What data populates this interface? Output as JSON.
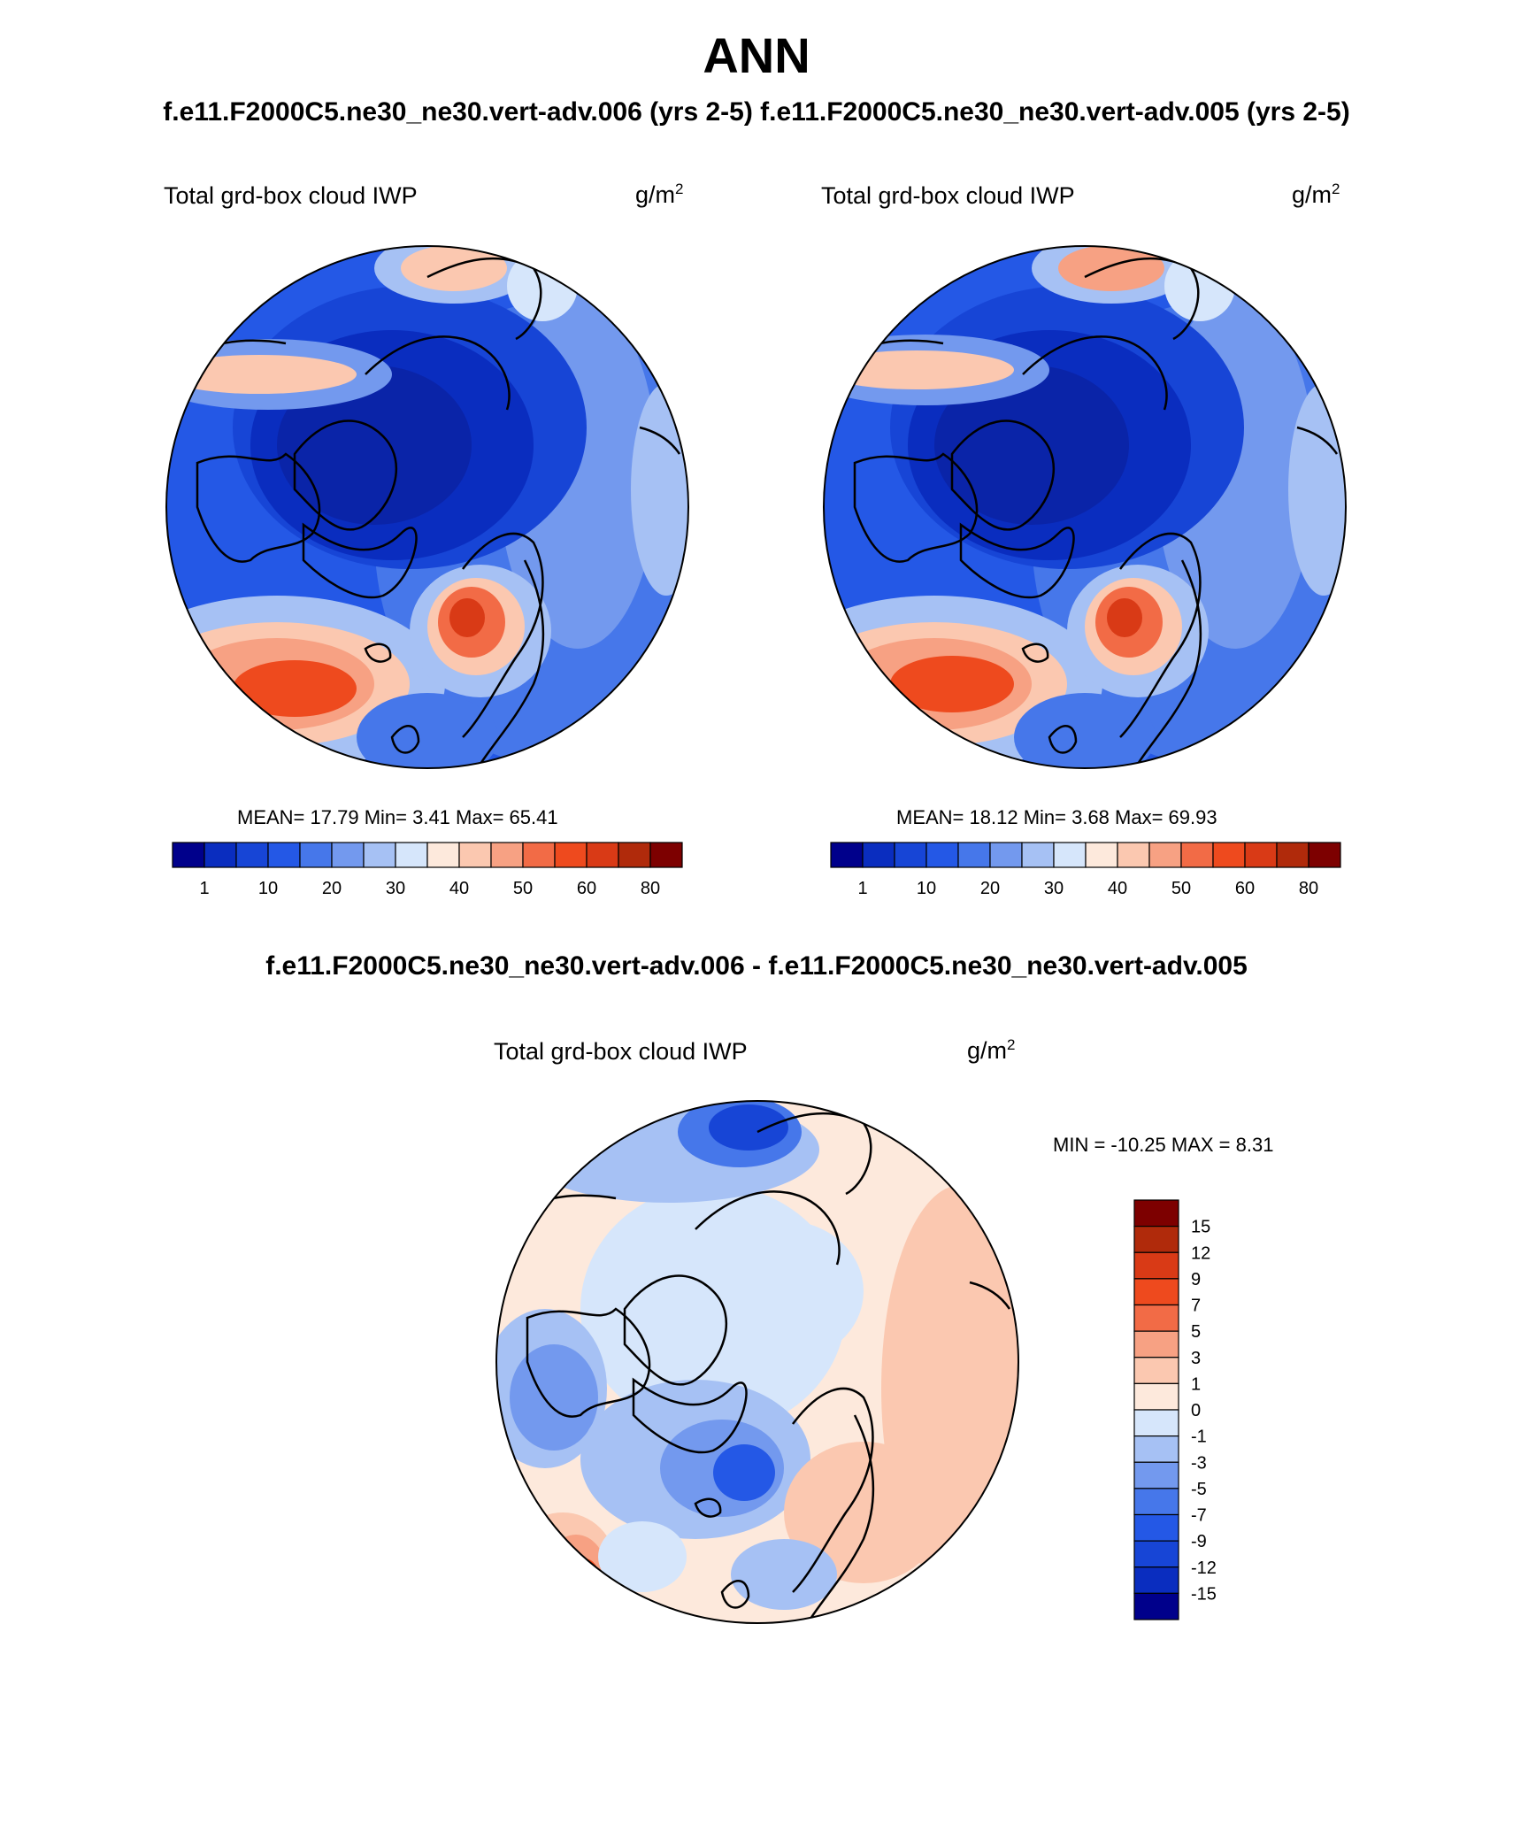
{
  "title": "ANN",
  "subtitle": {
    "left": "f.e11.F2000C5.ne30_ne30.vert-adv.006 (yrs 2-5)",
    "right": "f.e11.F2000C5.ne30_ne30.vert-adv.005 (yrs 2-5)"
  },
  "diff_title": "f.e11.F2000C5.ne30_ne30.vert-adv.006 - f.e11.F2000C5.ne30_ne30.vert-adv.005",
  "panels": [
    {
      "variable": "Total grd-box cloud IWP",
      "units_base": "g/m",
      "units_exp": "2",
      "stats_text": "MEAN=  17.79  Min=   3.41  Max=  65.41"
    },
    {
      "variable": "Total grd-box cloud IWP",
      "units_base": "g/m",
      "units_exp": "2",
      "stats_text": "MEAN=  18.12  Min=   3.68  Max=  69.93"
    },
    {
      "variable": "Total grd-box cloud IWP",
      "units_base": "g/m",
      "units_exp": "2",
      "stats_text": "MIN = -10.25 MAX =   8.31"
    }
  ],
  "colorbar_abs": {
    "colors": [
      "#00008b",
      "#0a2dbf",
      "#1745d6",
      "#2458e6",
      "#4677ea",
      "#7399ee",
      "#a6c1f4",
      "#d6e6fb",
      "#fde9dc",
      "#fbc8b0",
      "#f7a183",
      "#f26b46",
      "#ee4a1e",
      "#d93a16",
      "#b02a0b",
      "#7d0000"
    ],
    "tick_labels": [
      "1",
      "10",
      "20",
      "30",
      "40",
      "50",
      "60",
      "80"
    ]
  },
  "colorbar_diff": {
    "colors": [
      "#00008b",
      "#0a2dbf",
      "#1745d6",
      "#2458e6",
      "#4677ea",
      "#7399ee",
      "#a6c1f4",
      "#d6e6fb",
      "#fde9dc",
      "#fbc8b0",
      "#f7a183",
      "#f26b46",
      "#ee4a1e",
      "#d93a16",
      "#b02a0b",
      "#7d0000"
    ],
    "tick_labels": [
      "-15",
      "-12",
      "-9",
      "-7",
      "-5",
      "-3",
      "-1",
      "0",
      "1",
      "3",
      "5",
      "7",
      "9",
      "12",
      "15"
    ]
  }
}
